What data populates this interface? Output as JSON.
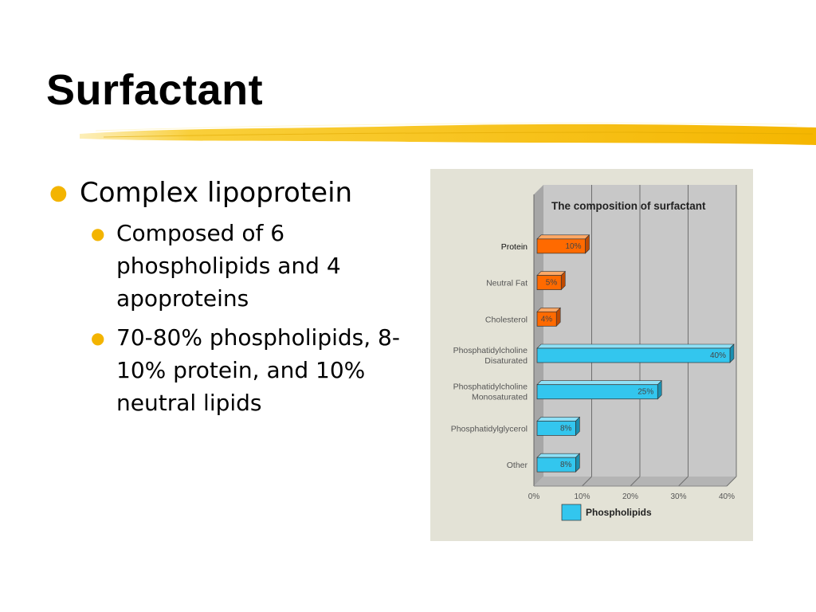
{
  "slide": {
    "title": "Surfactant",
    "bullets": [
      {
        "text": "Complex lipoprotein",
        "children": [
          "Composed of 6 phospholipids and 4 apoproteins",
          "70-80% phospholipids, 8-10% protein, and 10% neutral lipids"
        ]
      }
    ]
  },
  "colors": {
    "bullet": "#f3b400",
    "brush": "#f7c21b",
    "protein_bar": "#ff6a00",
    "phospholipid_bar": "#33c6ee",
    "chart_bg": "#e3e2d6",
    "plot_bg": "#c8c8c8"
  },
  "chart_data": {
    "type": "bar",
    "orientation": "horizontal",
    "title": "The composition of surfactant",
    "categories": [
      [
        "Protein"
      ],
      [
        "Neutral Fat"
      ],
      [
        "Cholesterol"
      ],
      [
        "Phosphatidylcholine",
        "Disaturated"
      ],
      [
        "Phosphatidylcholine",
        "Monosaturated"
      ],
      [
        "Phosphatidylglycerol"
      ],
      [
        "Other"
      ]
    ],
    "values": [
      10,
      5,
      4,
      40,
      25,
      8,
      8
    ],
    "value_labels": [
      "10%",
      "5%",
      "4%",
      "40%",
      "25%",
      "8%",
      "8%"
    ],
    "bar_groups": [
      "other",
      "other",
      "other",
      "phospholipid",
      "phospholipid",
      "phospholipid",
      "phospholipid"
    ],
    "xlim": [
      0,
      40
    ],
    "x_ticks": [
      "0%",
      "10%",
      "20%",
      "30%",
      "40%"
    ],
    "grid": true,
    "legend": [
      {
        "name": "Phospholipids",
        "group": "phospholipid"
      }
    ],
    "legend_position": "bottom"
  }
}
